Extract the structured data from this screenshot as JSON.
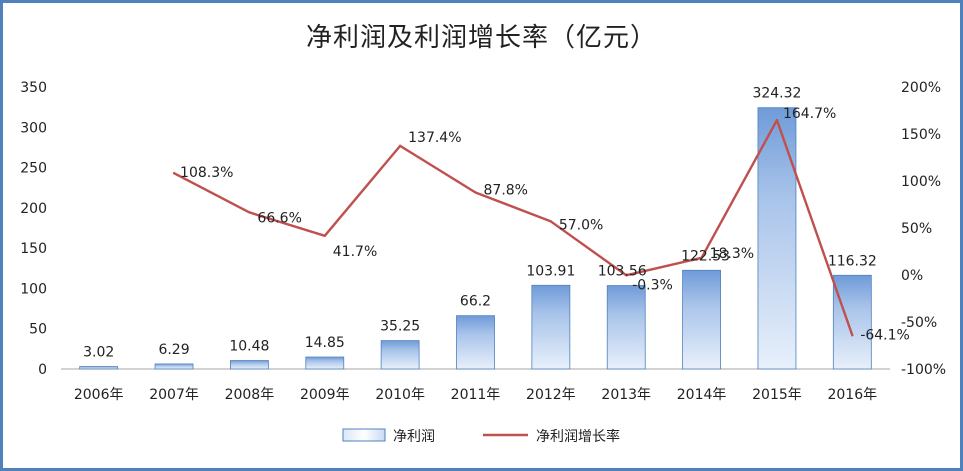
{
  "chart_data": {
    "type": "bar+line",
    "title": "净利润及利润增长率（亿元）",
    "categories": [
      "2006年",
      "2007年",
      "2008年",
      "2009年",
      "2010年",
      "2011年",
      "2012年",
      "2013年",
      "2014年",
      "2015年",
      "2016年"
    ],
    "series": [
      {
        "name": "净利润",
        "type": "bar",
        "axis": "left",
        "values": [
          3.02,
          6.29,
          10.48,
          14.85,
          35.25,
          66.2,
          103.91,
          103.56,
          122.53,
          324.32,
          116.32
        ],
        "labels": [
          "3.02",
          "6.29",
          "10.48",
          "14.85",
          "35.25",
          "66.2",
          "103.91",
          "103.56",
          "122.53",
          "324.32",
          "116.32"
        ],
        "color": "#4f81bd"
      },
      {
        "name": "净利润增长率",
        "type": "line",
        "axis": "right",
        "values": [
          null,
          108.3,
          66.6,
          41.7,
          137.4,
          87.8,
          57.0,
          -0.3,
          18.3,
          164.7,
          -64.1
        ],
        "labels": [
          "",
          "108.3%",
          "66.6%",
          "41.7%",
          "137.4%",
          "87.8%",
          "57.0%",
          "-0.3%",
          "18.3%",
          "164.7%",
          "-64.1%"
        ],
        "color": "#c0504d"
      }
    ],
    "y_left": {
      "min": 0,
      "max": 350,
      "ticks": [
        "0",
        "50",
        "100",
        "150",
        "200",
        "250",
        "300",
        "350"
      ]
    },
    "y_right": {
      "min": -100,
      "max": 200,
      "ticks": [
        "-100%",
        "-50%",
        "0%",
        "50%",
        "100%",
        "150%",
        "200%"
      ]
    },
    "grid": false,
    "legend_position": "bottom"
  }
}
